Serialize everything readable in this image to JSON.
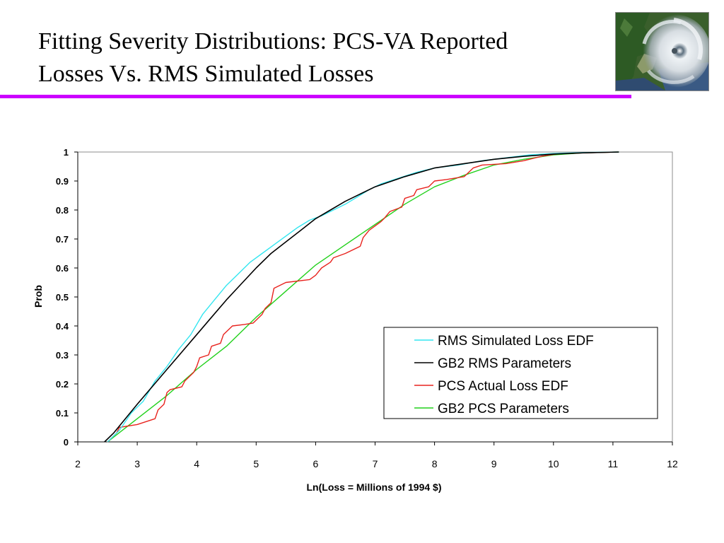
{
  "slide": {
    "title_line1": "Fitting Severity Distributions:  PCS-VA Reported",
    "title_line2": "Losses Vs. RMS Simulated Losses",
    "rule_color": "#cc00ff"
  },
  "photo": {
    "icon": "hurricane-satellite-image"
  },
  "chart_data": {
    "type": "line",
    "title": "",
    "xlabel": "Ln(Loss = Millions of 1994 $)",
    "ylabel": "Prob",
    "xlim": [
      2,
      12
    ],
    "ylim": [
      0,
      1
    ],
    "xticks": [
      2,
      3,
      4,
      5,
      6,
      7,
      8,
      9,
      10,
      11,
      12
    ],
    "yticks": [
      0,
      0.1,
      0.2,
      0.3,
      0.4,
      0.5,
      0.6,
      0.7,
      0.8,
      0.9,
      1
    ],
    "grid": false,
    "legend_position": "lower-right",
    "series": [
      {
        "name": "RMS Simulated Loss EDF",
        "color": "#33e6f0",
        "points": [
          [
            2.5,
            0
          ],
          [
            2.7,
            0.04
          ],
          [
            2.9,
            0.1
          ],
          [
            3.1,
            0.14
          ],
          [
            3.3,
            0.21
          ],
          [
            3.5,
            0.26
          ],
          [
            3.7,
            0.32
          ],
          [
            3.9,
            0.37
          ],
          [
            4.1,
            0.44
          ],
          [
            4.3,
            0.49
          ],
          [
            4.5,
            0.54
          ],
          [
            4.7,
            0.58
          ],
          [
            4.9,
            0.62
          ],
          [
            5.1,
            0.65
          ],
          [
            5.3,
            0.68
          ],
          [
            5.5,
            0.71
          ],
          [
            5.7,
            0.74
          ],
          [
            5.9,
            0.765
          ],
          [
            6.1,
            0.78
          ],
          [
            6.3,
            0.8
          ],
          [
            6.5,
            0.82
          ],
          [
            6.7,
            0.845
          ],
          [
            6.9,
            0.87
          ],
          [
            7.1,
            0.89
          ],
          [
            7.4,
            0.91
          ],
          [
            7.7,
            0.93
          ],
          [
            8,
            0.945
          ],
          [
            8.4,
            0.955
          ],
          [
            8.8,
            0.97
          ],
          [
            9.2,
            0.98
          ],
          [
            9.6,
            0.99
          ],
          [
            10,
            0.995
          ],
          [
            10.5,
            0.998
          ],
          [
            11.1,
            1
          ]
        ]
      },
      {
        "name": "GB2 RMS Parameters",
        "color": "#000000",
        "points": [
          [
            2.45,
            0
          ],
          [
            2.6,
            0.03
          ],
          [
            2.8,
            0.08
          ],
          [
            3,
            0.13
          ],
          [
            3.25,
            0.19
          ],
          [
            3.5,
            0.25
          ],
          [
            3.75,
            0.31
          ],
          [
            4,
            0.37
          ],
          [
            4.25,
            0.43
          ],
          [
            4.5,
            0.49
          ],
          [
            4.75,
            0.545
          ],
          [
            5,
            0.6
          ],
          [
            5.25,
            0.65
          ],
          [
            5.5,
            0.69
          ],
          [
            5.75,
            0.73
          ],
          [
            6,
            0.77
          ],
          [
            6.25,
            0.8
          ],
          [
            6.5,
            0.83
          ],
          [
            6.75,
            0.855
          ],
          [
            7,
            0.88
          ],
          [
            7.5,
            0.915
          ],
          [
            8,
            0.945
          ],
          [
            8.5,
            0.96
          ],
          [
            9,
            0.975
          ],
          [
            9.5,
            0.985
          ],
          [
            10,
            0.993
          ],
          [
            10.5,
            0.997
          ],
          [
            11.1,
            1
          ]
        ]
      },
      {
        "name": "PCS Actual Loss EDF",
        "color": "#e8231e",
        "points": [
          [
            2.5,
            0
          ],
          [
            2.65,
            0.03
          ],
          [
            2.7,
            0.05
          ],
          [
            3,
            0.06
          ],
          [
            3.3,
            0.08
          ],
          [
            3.35,
            0.11
          ],
          [
            3.45,
            0.13
          ],
          [
            3.5,
            0.17
          ],
          [
            3.55,
            0.18
          ],
          [
            3.75,
            0.19
          ],
          [
            3.8,
            0.21
          ],
          [
            3.95,
            0.24
          ],
          [
            4,
            0.26
          ],
          [
            4.05,
            0.29
          ],
          [
            4.2,
            0.3
          ],
          [
            4.25,
            0.33
          ],
          [
            4.4,
            0.34
          ],
          [
            4.45,
            0.37
          ],
          [
            4.6,
            0.4
          ],
          [
            4.8,
            0.405
          ],
          [
            4.95,
            0.41
          ],
          [
            5.1,
            0.44
          ],
          [
            5.15,
            0.46
          ],
          [
            5.25,
            0.48
          ],
          [
            5.3,
            0.53
          ],
          [
            5.5,
            0.55
          ],
          [
            5.9,
            0.56
          ],
          [
            6,
            0.575
          ],
          [
            6.1,
            0.6
          ],
          [
            6.25,
            0.62
          ],
          [
            6.3,
            0.635
          ],
          [
            6.5,
            0.65
          ],
          [
            6.75,
            0.675
          ],
          [
            6.8,
            0.705
          ],
          [
            6.9,
            0.73
          ],
          [
            7.1,
            0.76
          ],
          [
            7.15,
            0.77
          ],
          [
            7.25,
            0.795
          ],
          [
            7.45,
            0.81
          ],
          [
            7.5,
            0.84
          ],
          [
            7.65,
            0.85
          ],
          [
            7.7,
            0.87
          ],
          [
            7.9,
            0.88
          ],
          [
            8,
            0.9
          ],
          [
            8.2,
            0.905
          ],
          [
            8.5,
            0.915
          ],
          [
            8.65,
            0.945
          ],
          [
            8.8,
            0.955
          ],
          [
            9.2,
            0.96
          ],
          [
            9.5,
            0.97
          ],
          [
            9.8,
            0.985
          ],
          [
            10.1,
            0.995
          ],
          [
            11.1,
            1
          ]
        ]
      },
      {
        "name": "GB2 PCS Parameters",
        "color": "#22d11c",
        "points": [
          [
            2.5,
            0
          ],
          [
            2.75,
            0.04
          ],
          [
            3,
            0.08
          ],
          [
            3.5,
            0.16
          ],
          [
            4,
            0.25
          ],
          [
            4.5,
            0.33
          ],
          [
            5,
            0.43
          ],
          [
            5.5,
            0.52
          ],
          [
            6,
            0.61
          ],
          [
            6.5,
            0.68
          ],
          [
            7,
            0.75
          ],
          [
            7.5,
            0.82
          ],
          [
            8,
            0.88
          ],
          [
            8.5,
            0.92
          ],
          [
            9,
            0.955
          ],
          [
            9.5,
            0.975
          ],
          [
            10,
            0.99
          ],
          [
            10.5,
            0.997
          ],
          [
            11.1,
            1
          ]
        ]
      }
    ]
  }
}
